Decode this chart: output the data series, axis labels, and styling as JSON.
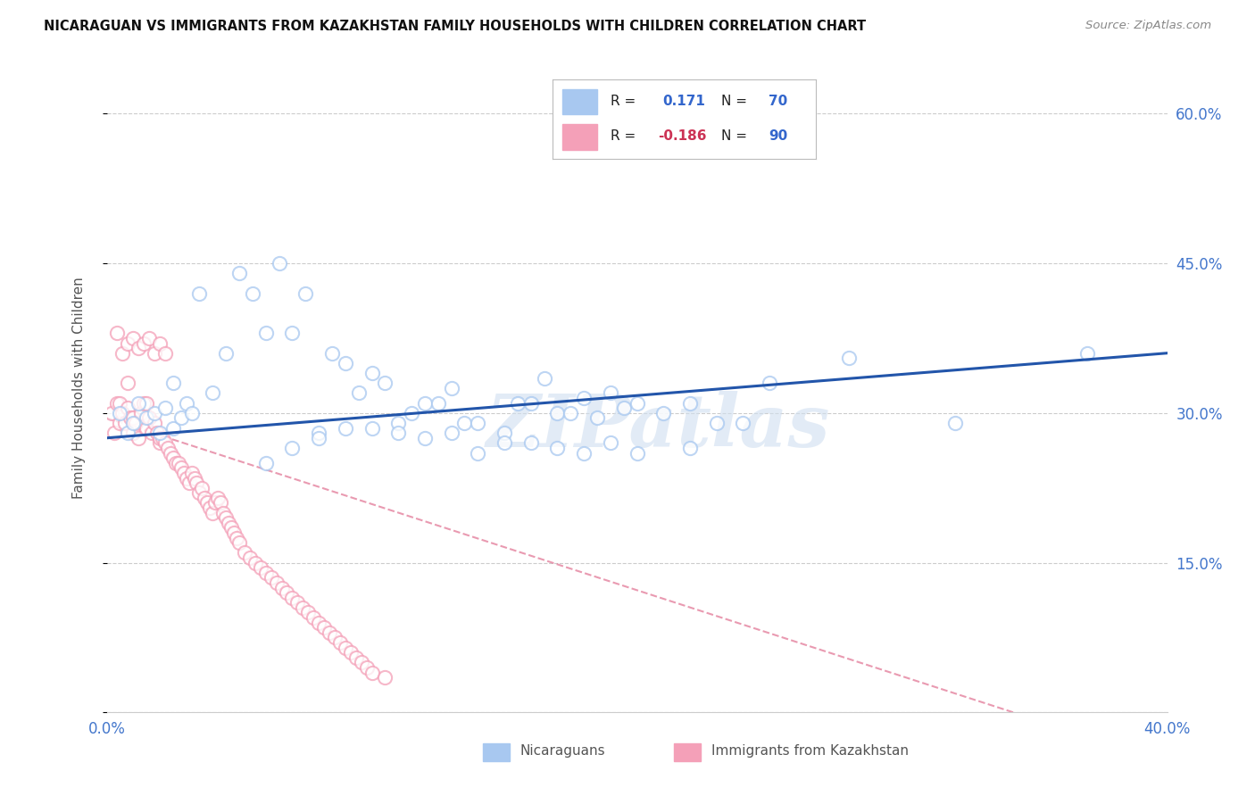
{
  "title": "NICARAGUAN VS IMMIGRANTS FROM KAZAKHSTAN FAMILY HOUSEHOLDS WITH CHILDREN CORRELATION CHART",
  "source": "Source: ZipAtlas.com",
  "ylabel": "Family Households with Children",
  "xlim": [
    0.0,
    0.4
  ],
  "ylim": [
    0.0,
    0.65
  ],
  "x_ticks": [
    0.0,
    0.05,
    0.1,
    0.15,
    0.2,
    0.25,
    0.3,
    0.35,
    0.4
  ],
  "y_ticks": [
    0.0,
    0.15,
    0.3,
    0.45,
    0.6
  ],
  "blue_color": "#a8c8f0",
  "pink_color": "#f4a0b8",
  "blue_line_color": "#2255aa",
  "pink_line_color": "#e07090",
  "watermark": "ZIPatlas",
  "legend_label_blue": "Nicaraguans",
  "legend_label_pink": "Immigrants from Kazakhstan",
  "blue_R": "0.171",
  "blue_N": "70",
  "pink_R": "-0.186",
  "pink_N": "90",
  "blue_scatter_x": [
    0.005,
    0.008,
    0.01,
    0.012,
    0.015,
    0.018,
    0.02,
    0.022,
    0.025,
    0.025,
    0.028,
    0.03,
    0.032,
    0.035,
    0.04,
    0.045,
    0.05,
    0.055,
    0.06,
    0.065,
    0.07,
    0.075,
    0.08,
    0.085,
    0.09,
    0.095,
    0.1,
    0.105,
    0.11,
    0.115,
    0.12,
    0.125,
    0.13,
    0.135,
    0.14,
    0.15,
    0.155,
    0.16,
    0.165,
    0.17,
    0.175,
    0.18,
    0.185,
    0.19,
    0.195,
    0.2,
    0.21,
    0.22,
    0.23,
    0.24,
    0.06,
    0.07,
    0.08,
    0.09,
    0.1,
    0.11,
    0.12,
    0.13,
    0.14,
    0.15,
    0.16,
    0.17,
    0.18,
    0.19,
    0.2,
    0.22,
    0.25,
    0.28,
    0.32,
    0.37
  ],
  "blue_scatter_y": [
    0.3,
    0.28,
    0.29,
    0.31,
    0.295,
    0.3,
    0.28,
    0.305,
    0.285,
    0.33,
    0.295,
    0.31,
    0.3,
    0.42,
    0.32,
    0.36,
    0.44,
    0.42,
    0.38,
    0.45,
    0.38,
    0.42,
    0.28,
    0.36,
    0.35,
    0.32,
    0.34,
    0.33,
    0.29,
    0.3,
    0.31,
    0.31,
    0.325,
    0.29,
    0.29,
    0.28,
    0.31,
    0.31,
    0.335,
    0.3,
    0.3,
    0.315,
    0.295,
    0.32,
    0.305,
    0.31,
    0.3,
    0.31,
    0.29,
    0.29,
    0.25,
    0.265,
    0.275,
    0.285,
    0.285,
    0.28,
    0.275,
    0.28,
    0.26,
    0.27,
    0.27,
    0.265,
    0.26,
    0.27,
    0.26,
    0.265,
    0.33,
    0.355,
    0.29,
    0.36
  ],
  "pink_scatter_x": [
    0.002,
    0.003,
    0.004,
    0.005,
    0.005,
    0.006,
    0.007,
    0.008,
    0.008,
    0.009,
    0.01,
    0.01,
    0.011,
    0.012,
    0.013,
    0.014,
    0.015,
    0.015,
    0.016,
    0.017,
    0.018,
    0.019,
    0.02,
    0.02,
    0.021,
    0.022,
    0.023,
    0.024,
    0.025,
    0.026,
    0.027,
    0.028,
    0.029,
    0.03,
    0.031,
    0.032,
    0.033,
    0.034,
    0.035,
    0.036,
    0.037,
    0.038,
    0.039,
    0.04,
    0.041,
    0.042,
    0.043,
    0.044,
    0.045,
    0.046,
    0.047,
    0.048,
    0.049,
    0.05,
    0.052,
    0.054,
    0.056,
    0.058,
    0.06,
    0.062,
    0.064,
    0.066,
    0.068,
    0.07,
    0.072,
    0.074,
    0.076,
    0.078,
    0.08,
    0.082,
    0.084,
    0.086,
    0.088,
    0.09,
    0.092,
    0.094,
    0.096,
    0.098,
    0.1,
    0.105,
    0.004,
    0.006,
    0.008,
    0.01,
    0.012,
    0.014,
    0.016,
    0.018,
    0.02,
    0.022
  ],
  "pink_scatter_y": [
    0.3,
    0.28,
    0.31,
    0.29,
    0.31,
    0.3,
    0.29,
    0.305,
    0.33,
    0.295,
    0.295,
    0.28,
    0.29,
    0.275,
    0.3,
    0.31,
    0.285,
    0.31,
    0.295,
    0.28,
    0.29,
    0.28,
    0.27,
    0.275,
    0.275,
    0.27,
    0.265,
    0.26,
    0.255,
    0.25,
    0.25,
    0.245,
    0.24,
    0.235,
    0.23,
    0.24,
    0.235,
    0.23,
    0.22,
    0.225,
    0.215,
    0.21,
    0.205,
    0.2,
    0.21,
    0.215,
    0.21,
    0.2,
    0.195,
    0.19,
    0.185,
    0.18,
    0.175,
    0.17,
    0.16,
    0.155,
    0.15,
    0.145,
    0.14,
    0.135,
    0.13,
    0.125,
    0.12,
    0.115,
    0.11,
    0.105,
    0.1,
    0.095,
    0.09,
    0.085,
    0.08,
    0.075,
    0.07,
    0.065,
    0.06,
    0.055,
    0.05,
    0.045,
    0.04,
    0.035,
    0.38,
    0.36,
    0.37,
    0.375,
    0.365,
    0.37,
    0.375,
    0.36,
    0.37,
    0.36
  ]
}
